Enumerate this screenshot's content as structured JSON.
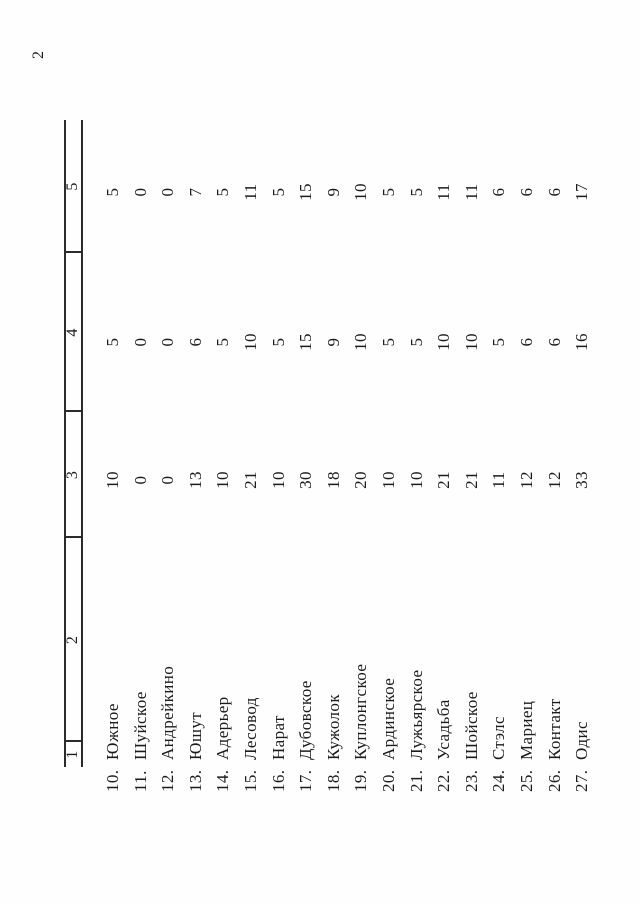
{
  "page_number": "2",
  "colors": {
    "ink": "#1c1c1c",
    "paper": "#fefefe",
    "rule": "#2b2b2b"
  },
  "table": {
    "column_headers": [
      "1",
      "2",
      "3",
      "4",
      "5"
    ],
    "rows": [
      {
        "num": "10.",
        "name": "Южное",
        "col3": "10",
        "col4": "5",
        "col5": "5"
      },
      {
        "num": "11.",
        "name": "Шуйское",
        "col3": "0",
        "col4": "0",
        "col5": "0"
      },
      {
        "num": "12.",
        "name": "Андрейкино",
        "col3": "0",
        "col4": "0",
        "col5": "0"
      },
      {
        "num": "13.",
        "name": "Юшут",
        "col3": "13",
        "col4": "6",
        "col5": "7"
      },
      {
        "num": "14.",
        "name": "Адерьер",
        "col3": "10",
        "col4": "5",
        "col5": "5"
      },
      {
        "num": "15.",
        "name": "Лесовод",
        "col3": "21",
        "col4": "10",
        "col5": "11"
      },
      {
        "num": "16.",
        "name": "Нарат",
        "col3": "10",
        "col4": "5",
        "col5": "5"
      },
      {
        "num": "17.",
        "name": "Дубовское",
        "col3": "30",
        "col4": "15",
        "col5": "15"
      },
      {
        "num": "18.",
        "name": "Кужолок",
        "col3": "18",
        "col4": "9",
        "col5": "9"
      },
      {
        "num": "19.",
        "name": "Куплонгское",
        "col3": "20",
        "col4": "10",
        "col5": "10"
      },
      {
        "num": "20.",
        "name": "Ардинское",
        "col3": "10",
        "col4": "5",
        "col5": "5"
      },
      {
        "num": "21.",
        "name": "Лужьярское",
        "col3": "10",
        "col4": "5",
        "col5": "5"
      },
      {
        "num": "22.",
        "name": "Усадьба",
        "col3": "21",
        "col4": "10",
        "col5": "11"
      },
      {
        "num": "23.",
        "name": "Шойское",
        "col3": "21",
        "col4": "10",
        "col5": "11"
      },
      {
        "num": "24.",
        "name": "Стэлс",
        "col3": "11",
        "col4": "5",
        "col5": "6"
      },
      {
        "num": "25.",
        "name": "Мариец",
        "col3": "12",
        "col4": "6",
        "col5": "6"
      },
      {
        "num": "26.",
        "name": "Контакт",
        "col3": "12",
        "col4": "6",
        "col5": "6"
      },
      {
        "num": "27.",
        "name": "Одис",
        "col3": "33",
        "col4": "16",
        "col5": "17"
      }
    ]
  }
}
